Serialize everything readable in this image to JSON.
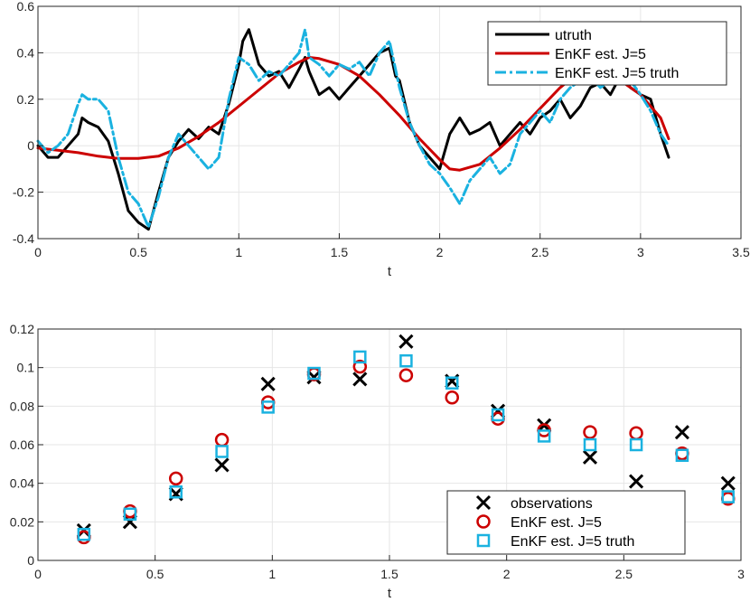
{
  "colors": {
    "truth": "#000000",
    "enkf": "#cc0000",
    "enkf_truth": "#1ab2e0",
    "grid": "#e6e6e6",
    "axis": "#262626"
  },
  "chart_data": [
    {
      "type": "line",
      "xlabel": "t",
      "ylabel": "",
      "xlim": [
        0,
        3.5
      ],
      "ylim": [
        -0.4,
        0.6
      ],
      "xticks": [
        0,
        0.5,
        1,
        1.5,
        2,
        2.5,
        3,
        3.5
      ],
      "xtick_labels": [
        "0",
        "0.5",
        "1",
        "1.5",
        "2",
        "2.5",
        "3",
        "3.5"
      ],
      "yticks": [
        -0.4,
        -0.2,
        0,
        0.2,
        0.4,
        0.6
      ],
      "ytick_labels": [
        "-0.4",
        "-0.2",
        "0",
        "0.2",
        "0.4",
        "0.6"
      ],
      "grid": true,
      "legend_position": "top-right",
      "series": [
        {
          "name": "utruth",
          "style": "solid",
          "color": "#000000",
          "x": [
            0,
            0.05,
            0.1,
            0.15,
            0.2,
            0.22,
            0.25,
            0.3,
            0.35,
            0.4,
            0.45,
            0.5,
            0.55,
            0.6,
            0.65,
            0.7,
            0.75,
            0.8,
            0.85,
            0.9,
            0.95,
            1.0,
            1.02,
            1.05,
            1.1,
            1.15,
            1.2,
            1.25,
            1.3,
            1.33,
            1.35,
            1.4,
            1.45,
            1.5,
            1.55,
            1.6,
            1.65,
            1.7,
            1.75,
            1.78,
            1.8,
            1.85,
            1.9,
            1.95,
            2.0,
            2.05,
            2.1,
            2.15,
            2.2,
            2.25,
            2.3,
            2.35,
            2.4,
            2.45,
            2.5,
            2.55,
            2.6,
            2.65,
            2.7,
            2.75,
            2.8,
            2.85,
            2.9,
            2.95,
            3.0,
            3.05,
            3.1,
            3.14
          ],
          "y": [
            0.0,
            -0.05,
            -0.05,
            0.0,
            0.05,
            0.12,
            0.1,
            0.08,
            0.02,
            -0.12,
            -0.28,
            -0.33,
            -0.36,
            -0.2,
            -0.05,
            0.02,
            0.07,
            0.03,
            0.08,
            0.05,
            0.18,
            0.35,
            0.45,
            0.5,
            0.35,
            0.3,
            0.32,
            0.25,
            0.33,
            0.38,
            0.32,
            0.22,
            0.25,
            0.2,
            0.25,
            0.3,
            0.35,
            0.4,
            0.42,
            0.3,
            0.28,
            0.1,
            0.0,
            -0.05,
            -0.1,
            0.05,
            0.12,
            0.05,
            0.07,
            0.1,
            0.0,
            0.05,
            0.1,
            0.05,
            0.12,
            0.15,
            0.2,
            0.12,
            0.17,
            0.25,
            0.27,
            0.22,
            0.3,
            0.25,
            0.22,
            0.2,
            0.05,
            -0.05
          ]
        },
        {
          "name": "EnKF est. J=5",
          "style": "solid",
          "color": "#cc0000",
          "x": [
            0,
            0.1,
            0.2,
            0.3,
            0.4,
            0.5,
            0.6,
            0.7,
            0.8,
            0.9,
            1.0,
            1.1,
            1.2,
            1.3,
            1.35,
            1.4,
            1.5,
            1.6,
            1.7,
            1.8,
            1.9,
            2.0,
            2.05,
            2.1,
            2.2,
            2.3,
            2.4,
            2.5,
            2.6,
            2.7,
            2.75,
            2.8,
            2.9,
            3.0,
            3.1,
            3.14
          ],
          "y": [
            -0.01,
            -0.02,
            -0.03,
            -0.045,
            -0.055,
            -0.055,
            -0.045,
            -0.01,
            0.04,
            0.1,
            0.17,
            0.24,
            0.31,
            0.36,
            0.38,
            0.375,
            0.35,
            0.3,
            0.22,
            0.13,
            0.03,
            -0.06,
            -0.1,
            -0.105,
            -0.08,
            -0.01,
            0.07,
            0.16,
            0.25,
            0.32,
            0.34,
            0.33,
            0.28,
            0.22,
            0.12,
            0.03
          ]
        },
        {
          "name": "EnKF est. J=5 truth",
          "style": "dashdot",
          "color": "#1ab2e0",
          "x": [
            0,
            0.05,
            0.1,
            0.15,
            0.2,
            0.22,
            0.25,
            0.3,
            0.35,
            0.4,
            0.45,
            0.5,
            0.55,
            0.6,
            0.65,
            0.7,
            0.75,
            0.8,
            0.85,
            0.9,
            0.95,
            1.0,
            1.05,
            1.1,
            1.15,
            1.2,
            1.25,
            1.3,
            1.33,
            1.35,
            1.4,
            1.45,
            1.5,
            1.55,
            1.6,
            1.65,
            1.7,
            1.75,
            1.8,
            1.85,
            1.9,
            1.95,
            2.0,
            2.05,
            2.1,
            2.15,
            2.2,
            2.25,
            2.3,
            2.35,
            2.4,
            2.45,
            2.5,
            2.55,
            2.6,
            2.65,
            2.7,
            2.75,
            2.8,
            2.85,
            2.9,
            2.95,
            3.0,
            3.05,
            3.1,
            3.14
          ],
          "y": [
            0.02,
            -0.03,
            0.0,
            0.05,
            0.18,
            0.22,
            0.2,
            0.2,
            0.15,
            -0.05,
            -0.2,
            -0.25,
            -0.35,
            -0.22,
            -0.05,
            0.05,
            0.0,
            -0.05,
            -0.1,
            -0.05,
            0.2,
            0.38,
            0.35,
            0.28,
            0.32,
            0.3,
            0.35,
            0.4,
            0.5,
            0.38,
            0.35,
            0.3,
            0.35,
            0.33,
            0.36,
            0.3,
            0.4,
            0.45,
            0.25,
            0.1,
            0.0,
            -0.08,
            -0.12,
            -0.18,
            -0.25,
            -0.15,
            -0.1,
            -0.05,
            -0.12,
            -0.08,
            0.05,
            0.1,
            0.15,
            0.1,
            0.2,
            0.25,
            0.28,
            0.3,
            0.25,
            0.28,
            0.3,
            0.28,
            0.22,
            0.15,
            0.05,
            0.0
          ]
        }
      ],
      "legend": [
        "utruth",
        "EnKF est. J=5",
        "EnKF est. J=5 truth"
      ]
    },
    {
      "type": "scatter",
      "xlabel": "t",
      "ylabel": "",
      "xlim": [
        0,
        3
      ],
      "ylim": [
        0,
        0.12
      ],
      "xticks": [
        0,
        0.5,
        1,
        1.5,
        2,
        2.5,
        3
      ],
      "xtick_labels": [
        "0",
        "0.5",
        "1",
        "1.5",
        "2",
        "2.5",
        "3"
      ],
      "yticks": [
        0,
        0.02,
        0.04,
        0.06,
        0.08,
        0.1,
        0.12
      ],
      "ytick_labels": [
        "0",
        "0.02",
        "0.04",
        "0.06",
        "0.08",
        "0.1",
        "0.12"
      ],
      "grid": true,
      "legend_position": "bottom-right",
      "x": [
        0.196,
        0.393,
        0.589,
        0.785,
        0.982,
        1.178,
        1.374,
        1.571,
        1.767,
        1.963,
        2.16,
        2.356,
        2.553,
        2.749,
        2.945
      ],
      "series": [
        {
          "name": "observations",
          "marker": "x",
          "color": "#000000",
          "values": [
            0.0155,
            0.02,
            0.0345,
            0.0495,
            0.0915,
            0.095,
            0.094,
            0.1135,
            0.093,
            0.0775,
            0.07,
            0.0535,
            0.041,
            0.0665,
            0.04
          ]
        },
        {
          "name": "EnKF est. J=5",
          "marker": "o",
          "color": "#cc0000",
          "values": [
            0.012,
            0.0255,
            0.0425,
            0.0625,
            0.082,
            0.0965,
            0.1005,
            0.096,
            0.0845,
            0.0735,
            0.0675,
            0.0665,
            0.066,
            0.0555,
            0.032
          ]
        },
        {
          "name": "EnKF est. J=5 truth",
          "marker": "s",
          "color": "#1ab2e0",
          "values": [
            0.0135,
            0.024,
            0.0355,
            0.0565,
            0.0795,
            0.097,
            0.1055,
            0.1035,
            0.092,
            0.0755,
            0.0645,
            0.06,
            0.06,
            0.0545,
            0.033
          ]
        }
      ],
      "legend": [
        "observations",
        "EnKF est. J=5",
        "EnKF est. J=5 truth"
      ]
    }
  ]
}
